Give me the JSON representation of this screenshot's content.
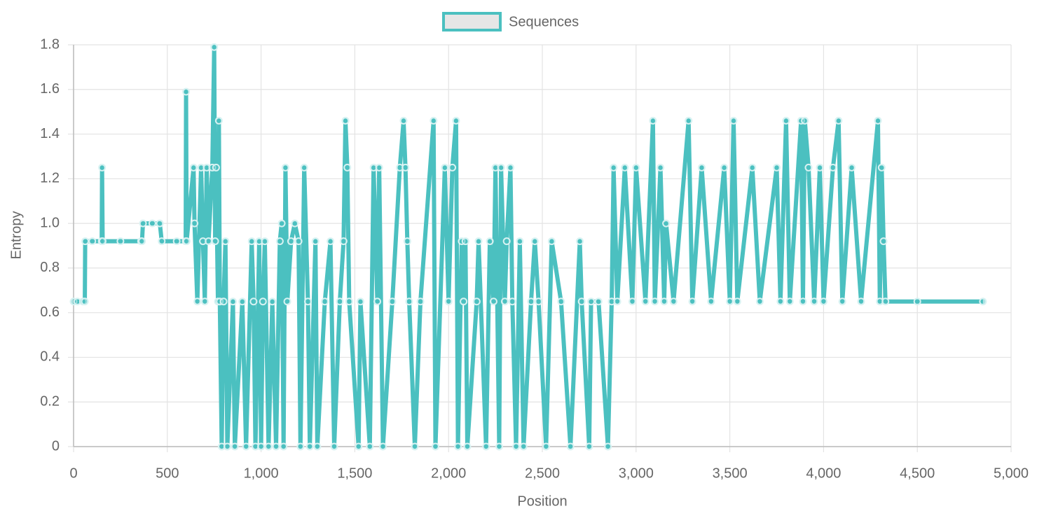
{
  "chart_data": {
    "type": "line",
    "x_label": "Position",
    "y_label": "Entropy",
    "x": [
      0,
      20,
      50,
      60,
      62,
      100,
      150,
      152,
      155,
      250,
      360,
      365,
      370,
      420,
      460,
      470,
      550,
      598,
      600,
      603,
      640,
      645,
      660,
      680,
      690,
      700,
      710,
      720,
      740,
      750,
      755,
      760,
      770,
      775,
      780,
      790,
      800,
      810,
      820,
      850,
      860,
      900,
      920,
      950,
      960,
      970,
      990,
      1000,
      1010,
      1020,
      1040,
      1060,
      1080,
      1100,
      1110,
      1120,
      1130,
      1140,
      1160,
      1180,
      1200,
      1210,
      1230,
      1250,
      1260,
      1290,
      1300,
      1340,
      1370,
      1390,
      1420,
      1440,
      1450,
      1460,
      1470,
      1520,
      1530,
      1580,
      1600,
      1620,
      1630,
      1650,
      1700,
      1740,
      1760,
      1770,
      1780,
      1790,
      1820,
      1850,
      1920,
      1930,
      1980,
      2000,
      2020,
      2040,
      2050,
      2070,
      2080,
      2090,
      2100,
      2150,
      2160,
      2200,
      2220,
      2240,
      2250,
      2270,
      2280,
      2300,
      2310,
      2330,
      2340,
      2360,
      2380,
      2400,
      2440,
      2460,
      2480,
      2520,
      2550,
      2600,
      2650,
      2700,
      2710,
      2750,
      2760,
      2800,
      2850,
      2870,
      2880,
      2900,
      2940,
      2980,
      3000,
      3050,
      3090,
      3100,
      3130,
      3150,
      3160,
      3200,
      3280,
      3300,
      3350,
      3400,
      3470,
      3500,
      3520,
      3540,
      3620,
      3660,
      3750,
      3770,
      3800,
      3820,
      3880,
      3890,
      3900,
      3920,
      3950,
      3980,
      4000,
      4050,
      4080,
      4100,
      4150,
      4200,
      4290,
      4300,
      4310,
      4320,
      4330,
      4500,
      4850
    ],
    "series": [
      {
        "name": "Sequences",
        "color": "#4bc0c0",
        "values": [
          0.65,
          0.65,
          0.65,
          0.65,
          0.92,
          0.92,
          0.92,
          1.25,
          0.92,
          0.92,
          0.92,
          0.92,
          1.0,
          1.0,
          1.0,
          0.92,
          0.92,
          0.92,
          1.59,
          0.92,
          1.25,
          1.0,
          0.65,
          1.25,
          0.92,
          0.65,
          1.25,
          0.92,
          1.25,
          1.79,
          0.92,
          1.25,
          0.65,
          1.46,
          0.65,
          0,
          0.65,
          0.92,
          0,
          0.65,
          0,
          0.65,
          0,
          0.92,
          0.65,
          0,
          0.92,
          0,
          0.65,
          0.92,
          0,
          0.65,
          0,
          0.92,
          1.0,
          0,
          1.25,
          0.65,
          0.92,
          1.0,
          0.92,
          0,
          1.25,
          0.65,
          0,
          0.92,
          0,
          0.65,
          0.92,
          0,
          0.65,
          0.92,
          1.46,
          1.25,
          0.65,
          0,
          0.65,
          0,
          1.25,
          0.65,
          1.25,
          0,
          0.65,
          1.25,
          1.46,
          1.25,
          0.92,
          0.65,
          0,
          0.65,
          1.46,
          0,
          1.25,
          0.65,
          1.25,
          1.46,
          0,
          0.92,
          0.65,
          0.92,
          0,
          0.65,
          0.92,
          0,
          0.92,
          0.65,
          1.25,
          0,
          1.25,
          0.65,
          0.92,
          1.25,
          0.65,
          0,
          0.92,
          0,
          0.65,
          0.92,
          0.65,
          0,
          0.92,
          0.65,
          0,
          0.92,
          0.65,
          0,
          0.65,
          0.65,
          0,
          0.65,
          1.25,
          0.65,
          1.25,
          0.65,
          1.25,
          0.65,
          1.46,
          0.65,
          1.25,
          0.65,
          1.0,
          0.65,
          1.46,
          0.65,
          1.25,
          0.65,
          1.25,
          0.65,
          1.46,
          0.65,
          1.25,
          0.65,
          1.25,
          0.65,
          1.46,
          0.65,
          1.46,
          0.65,
          1.46,
          1.25,
          0.65,
          1.25,
          0.65,
          1.25,
          1.46,
          0.65,
          1.25,
          0.65,
          1.46,
          0.65,
          1.25,
          0.92,
          0.65,
          0.65,
          0.65
        ]
      }
    ],
    "xlim": [
      0,
      5000
    ],
    "xticks": [
      0,
      500,
      {
        "value": 1000,
        "label": "1,000"
      },
      {
        "value": 1500,
        "label": "1,500"
      },
      {
        "value": 2000,
        "label": "2,000"
      },
      {
        "value": 2500,
        "label": "2,500"
      },
      {
        "value": 3000,
        "label": "3,000"
      },
      {
        "value": 3500,
        "label": "3,500"
      },
      {
        "value": 4000,
        "label": "4,000"
      },
      {
        "value": 4500,
        "label": "4,500"
      },
      {
        "value": 5000,
        "label": "5,000"
      }
    ],
    "ylim": [
      0,
      1.8
    ],
    "yticks": [
      0,
      0.2,
      0.4,
      0.6,
      0.8,
      {
        "value": 1,
        "label": "1.0"
      },
      1.2,
      1.4,
      1.6,
      1.8
    ],
    "grid": true,
    "legend": "top"
  }
}
